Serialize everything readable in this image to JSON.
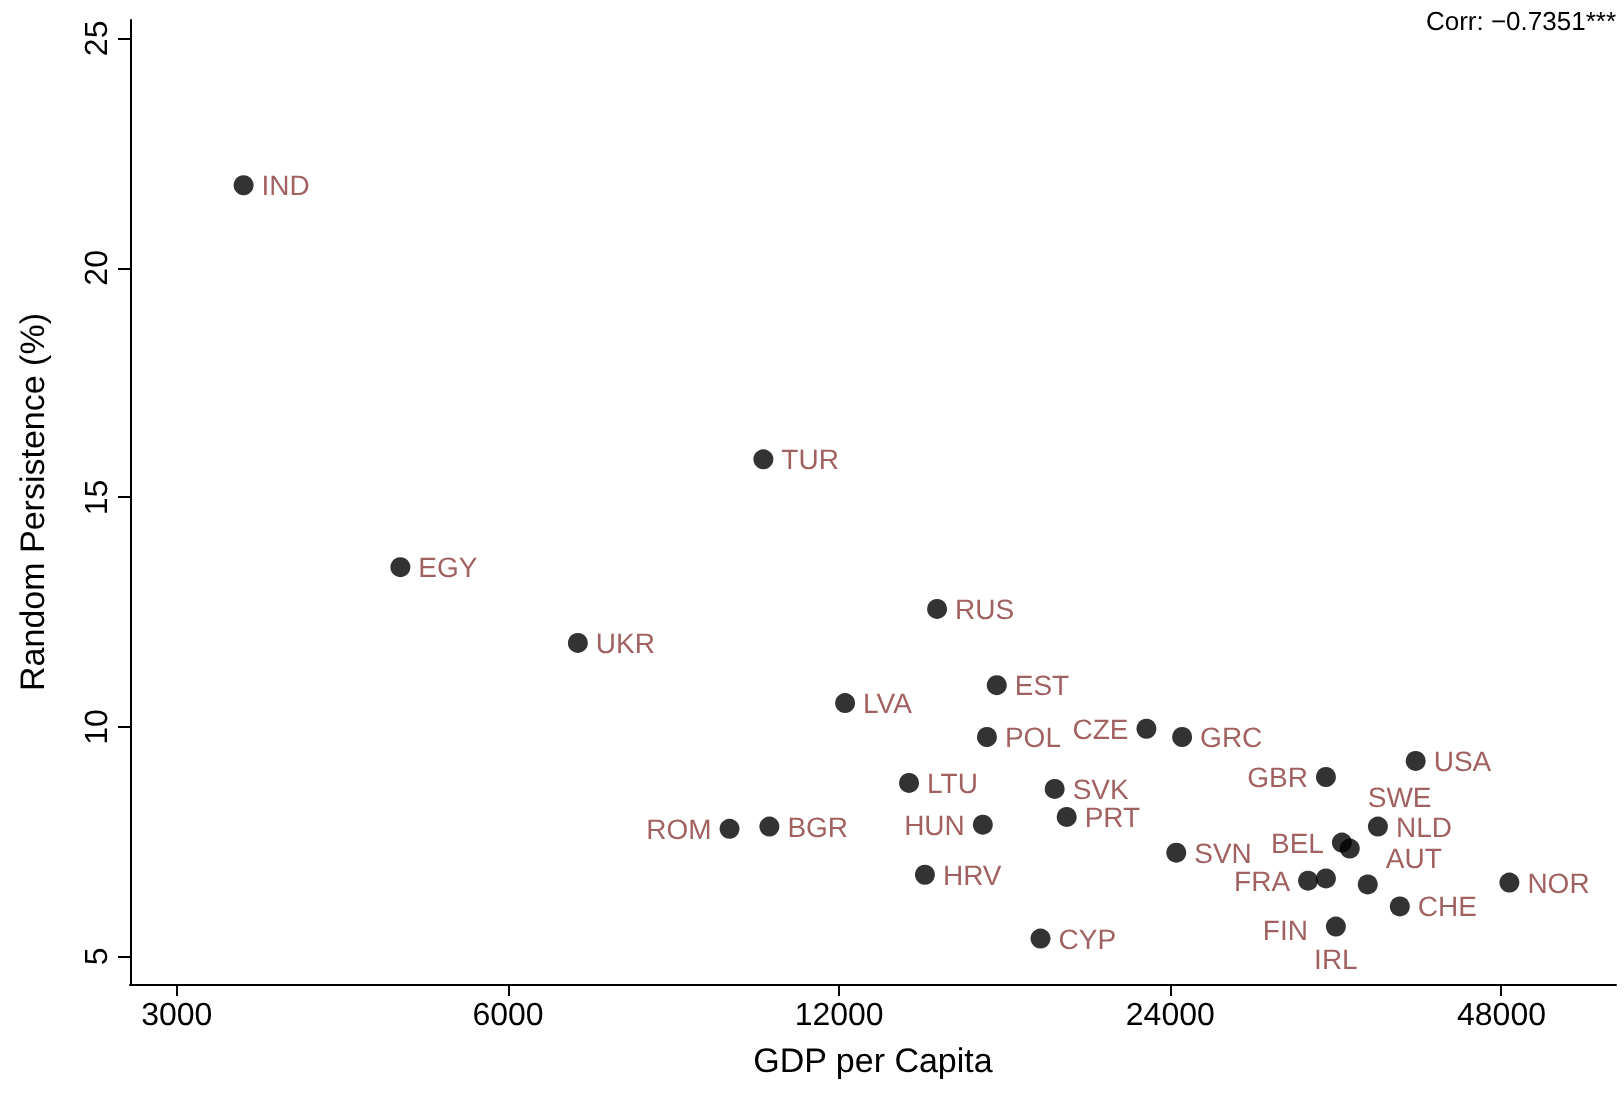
{
  "chart_data": {
    "type": "scatter",
    "xlabel": "GDP per Capita",
    "ylabel": "Random Persistence (%)",
    "annotations": [
      "Corr: −0.7351***"
    ],
    "log": "x",
    "xlim": [
      2720,
      61000
    ],
    "xticks": [
      3000,
      6000,
      12000,
      24000,
      48000
    ],
    "ylim": [
      4.4,
      25.4
    ],
    "yticks": [
      5,
      10,
      15,
      20,
      25
    ],
    "grid": false,
    "marker": "circle",
    "series": [
      {
        "color": "#000000",
        "x": [
          3450,
          4790,
          6945,
          10240,
          14730,
          16690,
          12150,
          16350,
          13890,
          9540,
          10370,
          16210,
          18840,
          19320,
          14360,
          18290,
          24300,
          22830,
          24600,
          33240,
          40110,
          37060,
          34370,
          34940,
          32020,
          33240,
          36280,
          38800,
          33940,
          48800
        ],
        "values": [
          21.8,
          13.48,
          11.83,
          15.83,
          12.57,
          10.91,
          10.52,
          9.78,
          8.78,
          7.78,
          7.83,
          7.87,
          8.65,
          8.04,
          6.78,
          5.39,
          7.26,
          9.96,
          9.78,
          8.91,
          9.26,
          7.83,
          7.48,
          7.35,
          6.65,
          6.7,
          6.57,
          6.09,
          5.65,
          6.61
        ],
        "value_labels": [
          "IND",
          "EGY",
          "UKR",
          "TUR",
          "RUS",
          "EST",
          "LVA",
          "POL",
          "LTU",
          "ROM",
          "BGR",
          "HUN",
          "SVK",
          "PRT",
          "HRV",
          "CYP",
          "SVN",
          "CZE",
          "GRC",
          "GBR",
          "USA",
          "NLD",
          "BEL",
          "SWE",
          "FRA",
          "FIN",
          "AUT",
          "CHE",
          "IRL",
          "NOR"
        ]
      }
    ]
  }
}
